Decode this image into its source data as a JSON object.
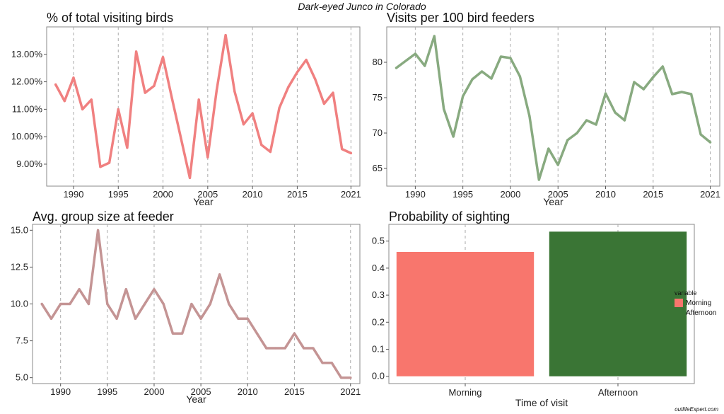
{
  "suptitle": "Dark-eyed Junco in Colorado",
  "watermark": "outlifeExpert.com",
  "chart_data": [
    {
      "type": "line",
      "title": "% of total visiting birds",
      "xlabel": "Year",
      "color": "#f08080",
      "x": [
        1988,
        1989,
        1990,
        1991,
        1992,
        1993,
        1994,
        1995,
        1996,
        1997,
        1998,
        1999,
        2000,
        2001,
        2002,
        2003,
        2004,
        2005,
        2006,
        2007,
        2008,
        2009,
        2010,
        2011,
        2012,
        2013,
        2014,
        2015,
        2016,
        2017,
        2018,
        2019,
        2020,
        2021
      ],
      "y": [
        11.9,
        11.3,
        12.15,
        11.0,
        11.35,
        8.9,
        9.05,
        11.0,
        9.6,
        13.1,
        11.6,
        11.85,
        12.9,
        11.4,
        9.95,
        8.5,
        11.35,
        9.25,
        11.7,
        13.7,
        11.65,
        10.45,
        10.85,
        9.7,
        9.45,
        11.05,
        11.8,
        12.35,
        12.8,
        12.1,
        11.2,
        11.6,
        9.55,
        9.4
      ],
      "xlim": [
        1987,
        2022
      ],
      "ylim": [
        8.2,
        14.0
      ],
      "xticks": [
        1990,
        1995,
        2000,
        2005,
        2010,
        2015,
        2021
      ],
      "xtick_labels": [
        "1990",
        "1995",
        "2000",
        "2005",
        "2010",
        "2015",
        "2021"
      ],
      "yticks": [
        9,
        10,
        11,
        12,
        13
      ],
      "ytick_labels": [
        "9.00%",
        "10.00%",
        "11.00%",
        "12.00%",
        "13.00%"
      ],
      "grid": "vertical-dashed"
    },
    {
      "type": "line",
      "title": "Visits per 100 bird feeders",
      "xlabel": "Year",
      "color": "#88aa80",
      "x": [
        1988,
        1989,
        1990,
        1991,
        1992,
        1993,
        1994,
        1995,
        1996,
        1997,
        1998,
        1999,
        2000,
        2001,
        2002,
        2003,
        2004,
        2005,
        2006,
        2007,
        2008,
        2009,
        2010,
        2011,
        2012,
        2013,
        2014,
        2015,
        2016,
        2017,
        2018,
        2019,
        2020,
        2021
      ],
      "y": [
        79.2,
        80.2,
        81.2,
        79.5,
        83.7,
        73.4,
        69.5,
        75.2,
        77.6,
        78.7,
        77.7,
        80.8,
        80.6,
        78.0,
        72.4,
        63.4,
        67.8,
        65.5,
        69.0,
        70.0,
        71.8,
        71.2,
        75.6,
        72.9,
        71.8,
        77.2,
        76.2,
        77.9,
        79.4,
        75.5,
        75.8,
        75.5,
        69.8,
        68.7
      ],
      "xlim": [
        1987,
        2022
      ],
      "ylim": [
        62.5,
        85.0
      ],
      "xticks": [
        1990,
        1995,
        2000,
        2005,
        2010,
        2015,
        2021
      ],
      "xtick_labels": [
        "1990",
        "1995",
        "2000",
        "2005",
        "2010",
        "2015",
        "2021"
      ],
      "yticks": [
        65,
        70,
        75,
        80
      ],
      "ytick_labels": [
        "65",
        "70",
        "75",
        "80"
      ],
      "grid": "vertical-dashed"
    },
    {
      "type": "line",
      "title": "Avg. group size at feeder",
      "xlabel": "Year",
      "color": "#c49494",
      "x": [
        1988,
        1989,
        1990,
        1991,
        1992,
        1993,
        1994,
        1995,
        1996,
        1997,
        1998,
        1999,
        2000,
        2001,
        2002,
        2003,
        2004,
        2005,
        2006,
        2007,
        2008,
        2009,
        2010,
        2011,
        2012,
        2013,
        2014,
        2015,
        2016,
        2017,
        2018,
        2019,
        2020,
        2021
      ],
      "y": [
        10,
        9,
        10,
        10,
        11,
        10,
        15,
        10,
        9,
        11,
        9,
        10,
        11,
        10,
        8,
        8,
        10,
        9,
        10,
        12,
        10,
        9,
        9,
        8,
        7,
        7,
        7,
        8,
        7,
        7,
        6,
        6,
        5,
        5
      ],
      "xlim": [
        1987,
        2022
      ],
      "ylim": [
        4.6,
        15.4
      ],
      "xticks": [
        1990,
        1995,
        2000,
        2005,
        2010,
        2015,
        2021
      ],
      "xtick_labels": [
        "1990",
        "1995",
        "2000",
        "2005",
        "2010",
        "2015",
        "2021"
      ],
      "yticks": [
        5,
        7.5,
        10,
        12.5,
        15
      ],
      "ytick_labels": [
        "5.0",
        "7.5",
        "10.0",
        "12.5",
        "15.0"
      ],
      "grid": "vertical-dashed"
    },
    {
      "type": "bar",
      "title": "Probability of sighting",
      "xlabel": "Time of visit",
      "categories": [
        "Morning",
        "Afternoon"
      ],
      "values": [
        0.46,
        0.535
      ],
      "colors": [
        "#f8766d",
        "#3a7535"
      ],
      "ylim": [
        -0.027,
        0.562
      ],
      "yticks": [
        0,
        0.1,
        0.2,
        0.3,
        0.4,
        0.5
      ],
      "ytick_labels": [
        "0.0",
        "0.1",
        "0.2",
        "0.3",
        "0.4",
        "0.5"
      ],
      "grid": "vertical-dashed",
      "legend": {
        "title": "variable",
        "position": "right",
        "items": [
          {
            "label": "Morning",
            "color": "#f8766d"
          },
          {
            "label": "Afternoon",
            "color": "#3a7535"
          }
        ]
      }
    }
  ]
}
